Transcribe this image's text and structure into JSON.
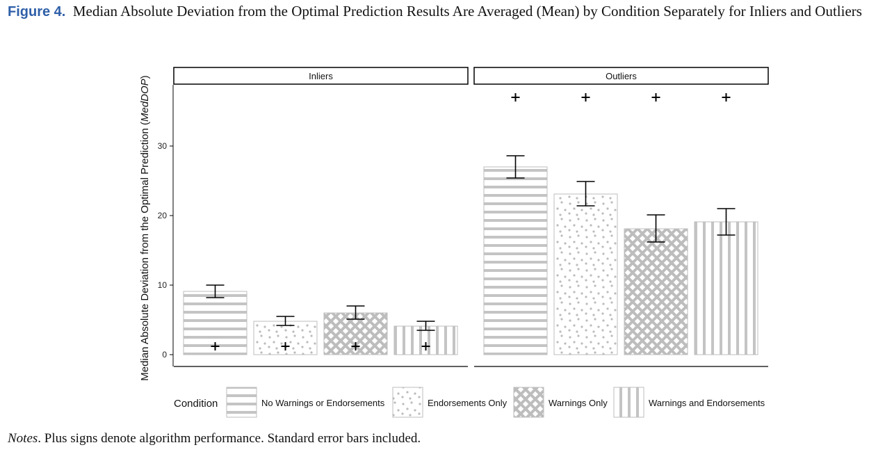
{
  "figure": {
    "label": "Figure 4.",
    "title": "Median Absolute Deviation from the Optimal Prediction Results Are Averaged (Mean) by Condition Separately for Inliers and Outliers",
    "notes_label": "Notes",
    "notes_text": ". Plus signs denote algorithm performance. Standard error bars included."
  },
  "chart_data": {
    "type": "bar",
    "panels": [
      "Inliers",
      "Outliers"
    ],
    "categories": [
      "No Warnings or Endorsements",
      "Endorsements Only",
      "Warnings Only",
      "Warnings and Endorsements"
    ],
    "ylabel_main": "Median Absolute Deviation from the Optimal Prediction (",
    "ylabel_italic": "MedDOP",
    "ylabel_end": ")",
    "ylim": [
      0,
      40
    ],
    "yticks": [
      0,
      10,
      20,
      30
    ],
    "legend_title": "Condition",
    "legend_position": "bottom",
    "series": [
      {
        "panel": "Inliers",
        "values": [
          9.1,
          4.8,
          6.0,
          4.1
        ],
        "se_low": [
          8.2,
          4.2,
          5.1,
          3.5
        ],
        "se_high": [
          10.0,
          5.5,
          7.0,
          4.8
        ],
        "algorithm": [
          1.2,
          1.2,
          1.2,
          1.2
        ]
      },
      {
        "panel": "Outliers",
        "values": [
          27.0,
          23.1,
          18.1,
          19.1
        ],
        "se_low": [
          25.4,
          21.4,
          16.2,
          17.2
        ],
        "se_high": [
          28.6,
          24.9,
          20.1,
          21.0
        ],
        "algorithm": [
          37.0,
          37.0,
          37.0,
          37.0
        ]
      }
    ],
    "colors": {
      "pattern": "#c8c8c8",
      "bar_outline": "#bdbdbd",
      "ink": "#000000"
    },
    "patterns": [
      "horizontal-stripes",
      "dots",
      "crosshatch",
      "vertical-stripes"
    ]
  }
}
